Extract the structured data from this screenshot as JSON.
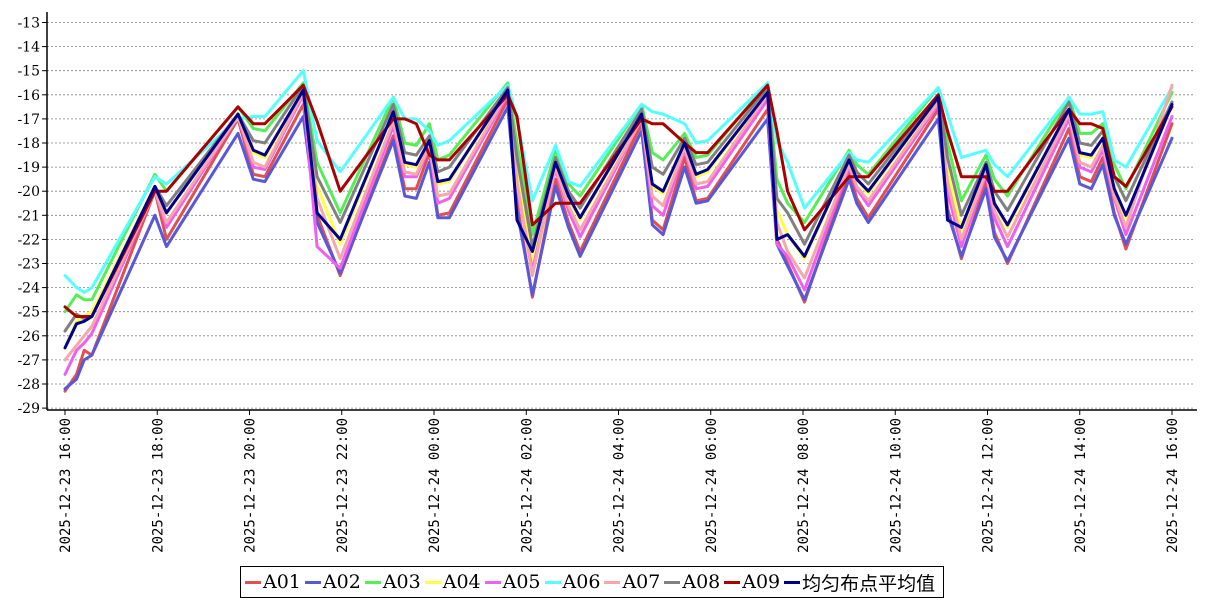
{
  "chart_data": {
    "type": "line",
    "title": "",
    "xlabel": "",
    "ylabel": "",
    "ylim": [
      -29,
      -13
    ],
    "y_ticks": [
      -13,
      -14,
      -15,
      -16,
      -17,
      -18,
      -19,
      -20,
      -21,
      -22,
      -23,
      -24,
      -25,
      -26,
      -27,
      -28,
      -29
    ],
    "x_ticks": [
      "2025-12-23 16:00",
      "2025-12-23 18:00",
      "2025-12-23 20:00",
      "2025-12-23 22:00",
      "2025-12-24 00:00",
      "2025-12-24 02:00",
      "2025-12-24 04:00",
      "2025-12-24 06:00",
      "2025-12-24 08:00",
      "2025-12-24 10:00",
      "2025-12-24 12:00",
      "2025-12-24 14:00",
      "2025-12-24 16:00"
    ],
    "x_range": [
      "2025-12-23 16:00",
      "2025-12-24 16:00"
    ],
    "grid": "horizontal dashed",
    "legend_position": "bottom",
    "x": [
      "2025-12-23 16:00",
      "2025-12-23 16:15",
      "2025-12-23 16:25",
      "2025-12-23 16:35",
      "2025-12-23 17:57",
      "2025-12-23 18:12",
      "2025-12-23 19:45",
      "2025-12-23 20:05",
      "2025-12-23 20:20",
      "2025-12-23 21:10",
      "2025-12-23 21:28",
      "2025-12-23 21:58",
      "2025-12-23 23:07",
      "2025-12-23 23:22",
      "2025-12-23 23:37",
      "2025-12-23 23:54",
      "2025-12-24 00:05",
      "2025-12-24 00:20",
      "2025-12-24 01:36",
      "2025-12-24 01:48",
      "2025-12-24 02:08",
      "2025-12-24 02:38",
      "2025-12-24 02:55",
      "2025-12-24 03:10",
      "2025-12-24 04:30",
      "2025-12-24 04:44",
      "2025-12-24 04:58",
      "2025-12-24 05:26",
      "2025-12-24 05:41",
      "2025-12-24 05:56",
      "2025-12-24 07:14",
      "2025-12-24 07:26",
      "2025-12-24 07:40",
      "2025-12-24 08:02",
      "2025-12-24 09:00",
      "2025-12-24 09:10",
      "2025-12-24 09:25",
      "2025-12-24 10:56",
      "2025-12-24 11:08",
      "2025-12-24 11:26",
      "2025-12-24 11:58",
      "2025-12-24 12:09",
      "2025-12-24 12:26",
      "2025-12-24 13:46",
      "2025-12-24 14:00",
      "2025-12-24 14:15",
      "2025-12-24 14:30",
      "2025-12-24 14:45",
      "2025-12-24 15:00",
      "2025-12-24 16:00"
    ],
    "series": [
      {
        "name": "A01",
        "color": "#e05050",
        "values": [
          -28.3,
          -27.6,
          -26.6,
          -26.8,
          -20.0,
          -22.0,
          -17.0,
          -19.3,
          -19.4,
          -16.4,
          -21.0,
          -23.5,
          -17.7,
          -19.9,
          -19.9,
          -18.4,
          -21.0,
          -20.9,
          -16.2,
          -20.5,
          -24.4,
          -19.5,
          -21.3,
          -22.5,
          -17.2,
          -21.2,
          -21.6,
          -18.6,
          -20.4,
          -20.3,
          -16.6,
          -22.0,
          -23.0,
          -24.6,
          -19.2,
          -20.3,
          -21.1,
          -16.6,
          -20.7,
          -22.8,
          -19.6,
          -21.7,
          -23.0,
          -17.4,
          -19.4,
          -19.6,
          -18.6,
          -20.9,
          -22.4,
          -17.2
        ]
      },
      {
        "name": "A02",
        "color": "#5858d8",
        "values": [
          -28.2,
          -27.8,
          -27.0,
          -26.8,
          -21.0,
          -22.3,
          -17.6,
          -19.5,
          -19.6,
          -16.9,
          -21.3,
          -23.4,
          -17.9,
          -20.2,
          -20.3,
          -18.8,
          -21.1,
          -21.1,
          -16.5,
          -20.8,
          -24.3,
          -19.8,
          -21.5,
          -22.7,
          -17.5,
          -21.4,
          -21.8,
          -19.0,
          -20.5,
          -20.4,
          -17.0,
          -22.2,
          -23.1,
          -24.5,
          -19.5,
          -20.5,
          -21.3,
          -17.0,
          -20.9,
          -22.7,
          -19.9,
          -21.9,
          -22.9,
          -17.8,
          -19.7,
          -19.9,
          -18.9,
          -21.0,
          -22.2,
          -17.8
        ]
      },
      {
        "name": "A03",
        "color": "#55ee55",
        "values": [
          -25.0,
          -24.3,
          -24.5,
          -24.5,
          -19.3,
          -20.0,
          -16.5,
          -17.4,
          -17.5,
          -15.5,
          -18.8,
          -20.9,
          -16.1,
          -18.0,
          -18.1,
          -17.2,
          -18.7,
          -18.5,
          -15.5,
          -18.0,
          -21.8,
          -18.3,
          -19.7,
          -20.2,
          -16.4,
          -18.4,
          -18.7,
          -17.6,
          -18.6,
          -18.5,
          -15.5,
          -19.5,
          -20.5,
          -21.3,
          -18.3,
          -18.9,
          -19.3,
          -15.7,
          -18.0,
          -20.4,
          -18.5,
          -19.5,
          -20.2,
          -16.1,
          -17.6,
          -17.6,
          -17.2,
          -18.9,
          -19.9,
          -15.9
        ]
      },
      {
        "name": "A04",
        "color": "#ffff44",
        "values": [
          -26.5,
          -25.4,
          -25.2,
          -25.0,
          -19.8,
          -20.9,
          -16.8,
          -18.4,
          -18.6,
          -15.8,
          -19.8,
          -22.2,
          -16.7,
          -18.9,
          -19.0,
          -17.9,
          -19.7,
          -19.6,
          -15.8,
          -19.3,
          -23.0,
          -18.8,
          -20.3,
          -21.2,
          -16.8,
          -19.8,
          -20.1,
          -18.0,
          -19.4,
          -19.2,
          -15.9,
          -20.8,
          -21.8,
          -22.8,
          -18.7,
          -19.5,
          -20.1,
          -16.1,
          -19.2,
          -21.6,
          -19.0,
          -20.5,
          -21.5,
          -16.6,
          -18.5,
          -18.6,
          -17.8,
          -19.9,
          -21.1,
          -16.4
        ]
      },
      {
        "name": "A05",
        "color": "#f060f0",
        "values": [
          -27.6,
          -26.6,
          -26.3,
          -25.9,
          -20.0,
          -21.5,
          -16.9,
          -19.0,
          -19.1,
          -16.0,
          -22.3,
          -23.2,
          -17.3,
          -19.4,
          -19.4,
          -18.2,
          -20.5,
          -20.3,
          -16.0,
          -19.8,
          -23.3,
          -19.1,
          -20.8,
          -21.9,
          -17.0,
          -20.6,
          -21.0,
          -18.3,
          -19.9,
          -19.8,
          -16.2,
          -22.2,
          -22.7,
          -24.1,
          -19.0,
          -19.9,
          -20.6,
          -16.4,
          -20.0,
          -22.3,
          -19.3,
          -21.1,
          -22.3,
          -17.0,
          -19.0,
          -19.2,
          -18.3,
          -20.3,
          -21.8,
          -16.9
        ]
      },
      {
        "name": "A06",
        "color": "#55ffff",
        "values": [
          -23.5,
          -24.0,
          -24.2,
          -24.0,
          -19.4,
          -19.7,
          -17.0,
          -16.9,
          -16.9,
          -15.0,
          -17.9,
          -19.2,
          -16.1,
          -17.0,
          -17.0,
          -17.5,
          -18.1,
          -17.9,
          -15.6,
          -17.0,
          -20.4,
          -18.1,
          -19.6,
          -19.8,
          -16.4,
          -16.7,
          -16.8,
          -17.2,
          -18.0,
          -17.9,
          -15.5,
          -17.9,
          -18.8,
          -20.7,
          -18.4,
          -18.7,
          -18.8,
          -15.7,
          -16.8,
          -18.6,
          -18.3,
          -18.9,
          -19.4,
          -16.1,
          -16.8,
          -16.8,
          -16.7,
          -18.7,
          -19.0,
          -15.7
        ]
      },
      {
        "name": "A07",
        "color": "#f5a8a8",
        "values": [
          -27.0,
          -26.4,
          -26.0,
          -25.6,
          -20.0,
          -21.3,
          -16.9,
          -18.8,
          -19.0,
          -15.9,
          -20.3,
          -22.8,
          -17.1,
          -19.2,
          -19.3,
          -18.1,
          -20.2,
          -20.1,
          -15.9,
          -19.6,
          -23.5,
          -19.0,
          -20.6,
          -21.6,
          -17.0,
          -20.2,
          -20.6,
          -18.2,
          -19.7,
          -19.6,
          -16.0,
          -21.3,
          -22.5,
          -23.6,
          -18.9,
          -19.8,
          -20.4,
          -16.3,
          -19.6,
          -22.0,
          -19.2,
          -20.8,
          -21.9,
          -16.8,
          -18.8,
          -19.0,
          -18.1,
          -20.2,
          -21.5,
          -15.6
        ]
      },
      {
        "name": "A08",
        "color": "#808080",
        "values": [
          -25.8,
          -25.1,
          -25.3,
          -25.2,
          -19.8,
          -20.6,
          -16.8,
          -17.9,
          -18.0,
          -15.6,
          -19.4,
          -21.3,
          -16.4,
          -18.4,
          -18.5,
          -17.7,
          -19.2,
          -19.0,
          -15.7,
          -18.6,
          -22.3,
          -18.6,
          -20.0,
          -20.7,
          -16.6,
          -19.0,
          -19.3,
          -17.8,
          -18.9,
          -18.8,
          -15.7,
          -20.3,
          -20.9,
          -22.2,
          -18.5,
          -19.2,
          -19.7,
          -16.0,
          -18.6,
          -21.0,
          -18.8,
          -20.0,
          -20.8,
          -16.3,
          -18.0,
          -18.1,
          -17.5,
          -19.4,
          -20.4,
          -16.3
        ]
      },
      {
        "name": "A09",
        "color": "#aa0000",
        "values": [
          -24.8,
          -25.2,
          -25.2,
          -25.2,
          -20.0,
          -20.0,
          -16.5,
          -17.2,
          -17.2,
          -15.6,
          -17.1,
          -20.0,
          -17.0,
          -17.0,
          -17.2,
          -18.5,
          -18.7,
          -18.7,
          -16.0,
          -16.9,
          -21.4,
          -20.5,
          -20.5,
          -20.5,
          -17.0,
          -17.2,
          -17.2,
          -18.0,
          -18.4,
          -18.4,
          -15.6,
          -17.5,
          -20.0,
          -21.6,
          -19.4,
          -19.4,
          -19.4,
          -16.0,
          -17.5,
          -19.4,
          -19.4,
          -20.0,
          -20.0,
          -16.6,
          -17.2,
          -17.2,
          -17.4,
          -19.4,
          -19.8,
          -16.5
        ]
      },
      {
        "name": "均匀布点平均值",
        "color": "#00008b",
        "values": [
          -26.5,
          -25.5,
          -25.4,
          -25.2,
          -19.8,
          -20.9,
          -16.8,
          -18.3,
          -18.5,
          -15.8,
          -20.9,
          -22.0,
          -16.7,
          -18.8,
          -18.9,
          -17.9,
          -19.6,
          -19.5,
          -15.8,
          -21.2,
          -22.5,
          -18.8,
          -20.2,
          -21.1,
          -16.8,
          -19.7,
          -20.0,
          -18.0,
          -19.3,
          -19.1,
          -15.9,
          -22.0,
          -21.8,
          -22.7,
          -18.7,
          -19.5,
          -20.0,
          -16.1,
          -21.2,
          -21.5,
          -18.9,
          -20.5,
          -21.4,
          -16.6,
          -18.4,
          -18.5,
          -17.8,
          -19.9,
          -21.0,
          -16.4
        ]
      }
    ]
  }
}
